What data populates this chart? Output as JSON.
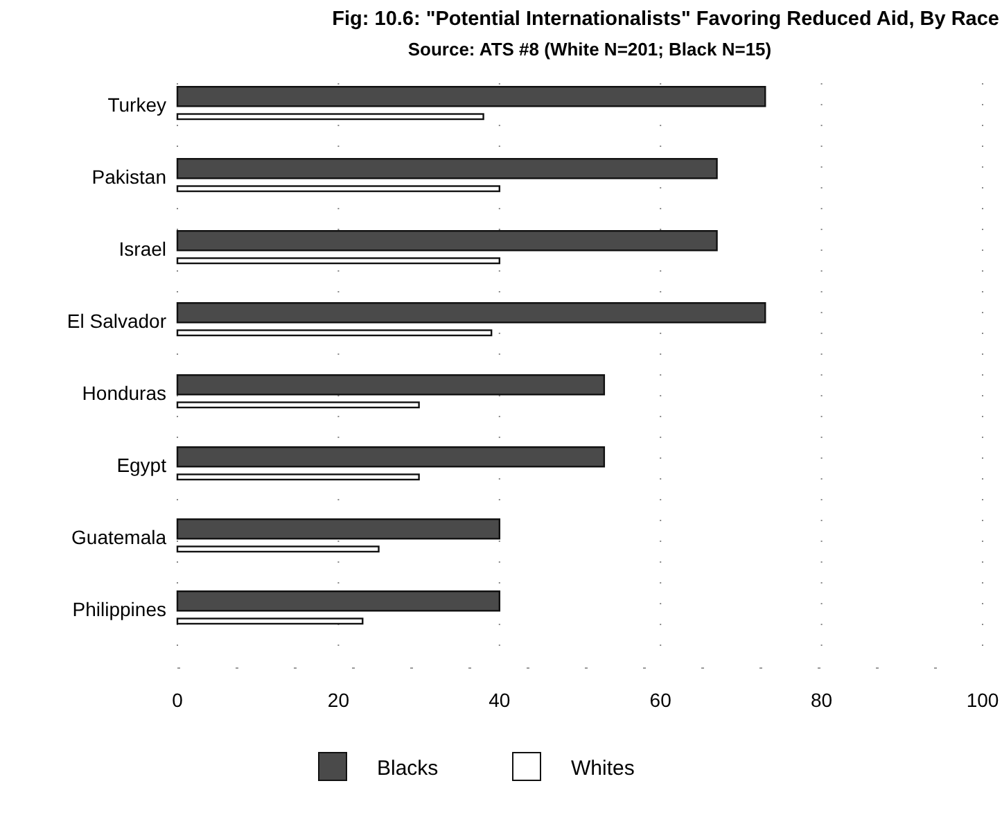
{
  "chart_data": {
    "type": "bar",
    "orientation": "horizontal",
    "title": "Fig: 10.6: \"Potential Internationalists\" Favoring Reduced Aid, By Race",
    "subtitle": "Source: ATS #8 (White N=201; Black N=15)",
    "categories": [
      "Turkey",
      "Pakistan",
      "Israel",
      "El Salvador",
      "Honduras",
      "Egypt",
      "Guatemala",
      "Philippines"
    ],
    "series": [
      {
        "name": "Blacks",
        "color": "#4a4a4a",
        "values": [
          73,
          67,
          67,
          73,
          53,
          53,
          40,
          40
        ]
      },
      {
        "name": "Whites",
        "color": "#ffffff",
        "values": [
          38,
          40,
          40,
          39,
          30,
          30,
          25,
          23
        ]
      }
    ],
    "xlim": [
      0,
      100
    ],
    "xticks": [
      0,
      20,
      40,
      60,
      80,
      100
    ],
    "grid": "x",
    "legend": "bottom"
  }
}
